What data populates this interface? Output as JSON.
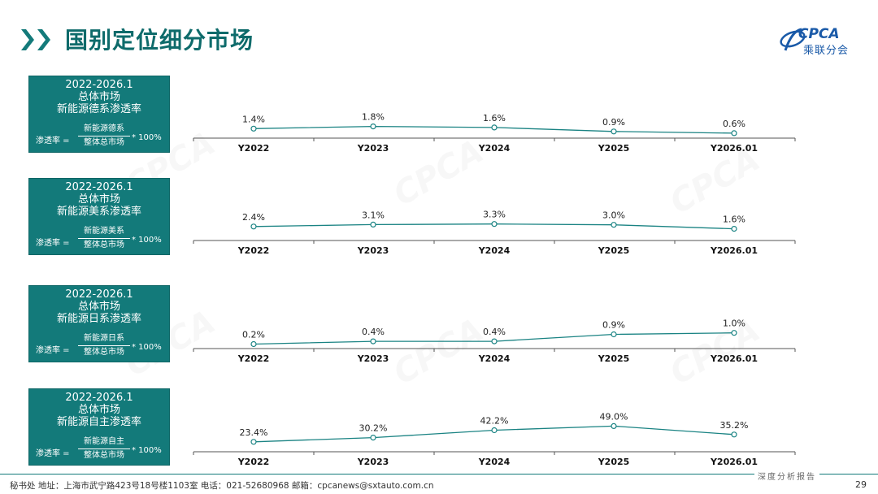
{
  "header": {
    "title": "国别定位细分市场",
    "logo_text": "CPCA",
    "logo_sub": "乘联分会"
  },
  "colors": {
    "accent": "#137a7a",
    "line": "#1a8383",
    "brand": "#1a5aa8"
  },
  "panels": [
    {
      "period": "2022-2026.1",
      "scope": "总体市场",
      "heading": "新能源德系渗透率",
      "f_left": "渗透率 =",
      "f_num": "新能源德系",
      "f_den": "整体总市场",
      "f_right": "* 100%"
    },
    {
      "period": "2022-2026.1",
      "scope": "总体市场",
      "heading": "新能源美系渗透率",
      "f_left": "渗透率 =",
      "f_num": "新能源美系",
      "f_den": "整体总市场",
      "f_right": "* 100%"
    },
    {
      "period": "2022-2026.1",
      "scope": "总体市场",
      "heading": "新能源日系渗透率",
      "f_left": "渗透率 =",
      "f_num": "新能源日系",
      "f_den": "整体总市场",
      "f_right": "* 100%"
    },
    {
      "period": "2022-2026.1",
      "scope": "总体市场",
      "heading": "新能源自主渗透率",
      "f_left": "渗透率 =",
      "f_num": "新能源自主",
      "f_den": "整体总市场",
      "f_right": "* 100%"
    }
  ],
  "chart_data": [
    {
      "type": "line",
      "categories": [
        "Y2022",
        "Y2023",
        "Y2024",
        "Y2025",
        "Y2026.01"
      ],
      "values": [
        1.4,
        1.8,
        1.6,
        0.9,
        0.6
      ],
      "labels": [
        "1.4%",
        "1.8%",
        "1.6%",
        "0.9%",
        "0.6%"
      ],
      "ylim": [
        0,
        5.5
      ],
      "grid": false
    },
    {
      "type": "line",
      "categories": [
        "Y2022",
        "Y2023",
        "Y2024",
        "Y2025",
        "Y2026.01"
      ],
      "values": [
        2.4,
        3.1,
        3.3,
        3.0,
        1.6
      ],
      "labels": [
        "2.4%",
        "3.1%",
        "3.3%",
        "3.0%",
        "1.6%"
      ],
      "ylim": [
        -2,
        9
      ],
      "grid": false
    },
    {
      "type": "line",
      "categories": [
        "Y2022",
        "Y2023",
        "Y2024",
        "Y2025",
        "Y2026.01"
      ],
      "values": [
        0.2,
        0.4,
        0.4,
        0.9,
        1.0
      ],
      "labels": [
        "0.2%",
        "0.4%",
        "0.4%",
        "0.9%",
        "1.0%"
      ],
      "ylim": [
        0,
        2.2
      ],
      "grid": false
    },
    {
      "type": "line",
      "categories": [
        "Y2022",
        "Y2023",
        "Y2024",
        "Y2025",
        "Y2026.01"
      ],
      "values": [
        23.4,
        30.2,
        42.2,
        49.0,
        35.2
      ],
      "labels": [
        "23.4%",
        "30.2%",
        "42.2%",
        "49.0%",
        "35.2%"
      ],
      "ylim": [
        10,
        60
      ],
      "grid": false
    }
  ],
  "footer": {
    "text": "秘书处  地址：上海市武宁路423号18号楼1103室  电话：021-52680968  邮箱：cpcanews@sxtauto.com.cn",
    "tagline": "深度分析报告",
    "page": "29"
  }
}
